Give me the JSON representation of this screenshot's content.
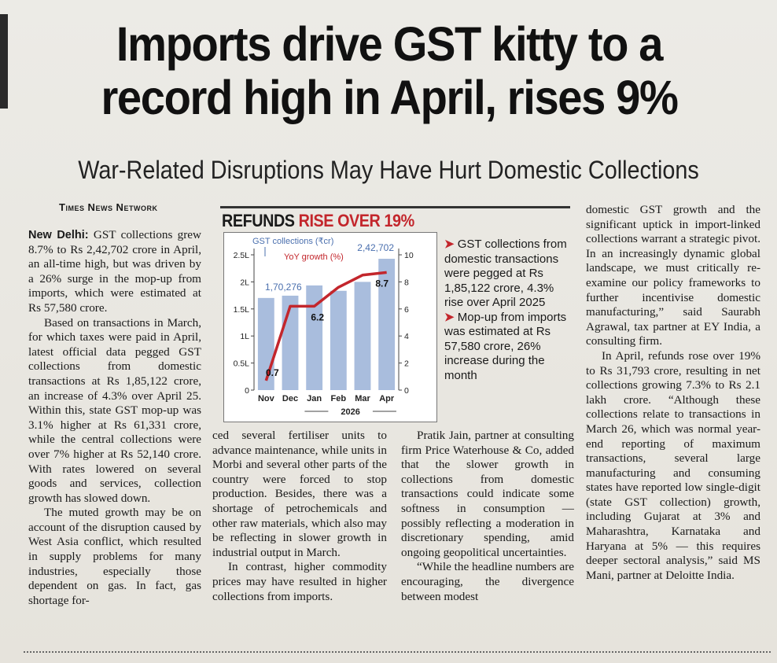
{
  "headline": "Imports drive GST kitty to a record high in April, rises 9%",
  "subheadline": "War-Related Disruptions May Have Hurt Domestic Collections",
  "byline": "Times News Network",
  "col1": {
    "lead": "New Delhi:",
    "p1": "GST collections grew 8.7% to Rs 2,42,702 crore in April, an all-time high, but was driven by a 26% surge in the mop-up from imports, which were estimated at Rs 57,580 crore.",
    "p2": "Based on transactions in March, for which taxes were paid in April, latest official data pegged GST collections from domestic transactions at Rs 1,85,122 crore, an increase of 4.3% over April 25. Within this, state GST mop-up was 3.1% higher at Rs 61,331 crore, while the central collections were over 7% higher at Rs 52,140 crore. With rates lowered on several goods and services, collection growth has slowed down.",
    "p3": "The muted growth may be on account of the disruption caused by West Asia conflict, which resulted in supply problems for many industries, especially those dependent on gas. In fact, gas shortage for-"
  },
  "col2": {
    "p1": "ced several fertiliser units to advance maintenance, while units in Morbi and several other parts of the country were forced to stop production. Besides, there was a shortage of petrochemicals and other raw materials, which also may be reflecting in slower growth in industrial output in March.",
    "p2": "In contrast, higher commodity prices may have resulted in higher collections from imports."
  },
  "col3": {
    "p1": "Pratik Jain, partner at consulting firm Price Waterhouse & Co, added that the slower growth in collections from domestic transactions could indicate some softness in consumption — possibly reflecting a moderation in discretionary spending, amid ongoing geopolitical uncertainties.",
    "p2": "“While the headline numbers are encouraging, the divergence between modest"
  },
  "col4": {
    "p1": "domestic GST growth and the significant uptick in import-linked collections warrant a strategic pivot. In an increasingly dynamic global landscape, we must critically re-examine our policy frameworks to further incentivise domestic manufacturing,” said Saurabh Agrawal, tax partner at EY India, a consulting firm.",
    "p2": "In April, refunds rose over 19% to Rs 31,793 crore, resulting in net collections growing 7.3% to Rs 2.1 lakh crore. “Although these collections relate to transactions in March 26, which was normal year-end reporting of maximum transactions, several large manufacturing and consuming states have reported low single-digit (state GST collection) growth, including Gujarat at 3% and Maharashtra, Karnataka and Haryana at 5% — this requires deeper sectoral analysis,” said MS Mani, partner at Deloitte India."
  },
  "graphic": {
    "title_black": "REFUNDS",
    "title_red": "RISE OVER 19%",
    "bullet1": "GST collections from domestic transactions were pegged at Rs 1,85,122 crore, 4.3% rise over April 2025",
    "bullet2": "Mop-up from imports was estimated at Rs 57,580 crore, 26% increase during the month",
    "bullet_marker": "➤"
  },
  "chart_data": {
    "type": "bar",
    "categories": [
      "Nov",
      "Dec",
      "Jan",
      "Feb",
      "Mar",
      "Apr"
    ],
    "x_group_label": "2026",
    "series": [
      {
        "name": "GST collections (₹cr)",
        "type": "bar",
        "axis": "left",
        "values": [
          170276,
          174500,
          193400,
          183500,
          200000,
          242702
        ],
        "color": "#a9bddd"
      },
      {
        "name": "YoY growth (%)",
        "type": "line",
        "axis": "right",
        "values": [
          0.7,
          6.2,
          6.2,
          7.6,
          8.5,
          8.7
        ],
        "color": "#c3262c"
      }
    ],
    "y_left": {
      "ticks": [
        "0",
        "0.5L",
        "1L",
        "1.5L",
        "2L",
        "2.5L"
      ],
      "tick_values": [
        0,
        50000,
        100000,
        150000,
        200000,
        250000
      ],
      "range": [
        0,
        250000
      ]
    },
    "y_right": {
      "ticks": [
        "0",
        "2",
        "4",
        "6",
        "8",
        "10"
      ],
      "tick_values": [
        0,
        2,
        4,
        6,
        8,
        10
      ],
      "range": [
        0,
        10
      ]
    },
    "bar_labels": [
      {
        "index": 0,
        "text": "1,70,276"
      },
      {
        "index": 5,
        "text": "2,42,702"
      }
    ],
    "line_labels": [
      {
        "index": 0,
        "text": "0.7"
      },
      {
        "index": 2,
        "text": "6.2"
      },
      {
        "index": 5,
        "text": "8.7"
      }
    ],
    "legend": [
      "GST collections (₹cr)",
      "YoY growth (%)"
    ],
    "grid": false
  }
}
